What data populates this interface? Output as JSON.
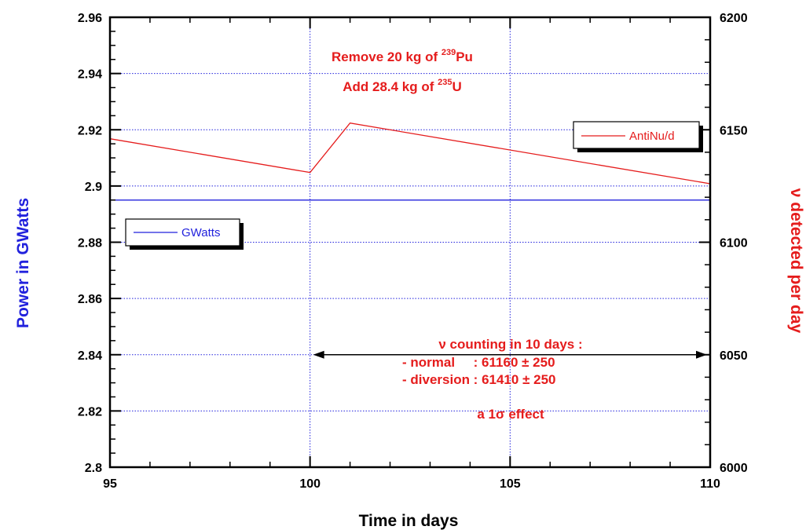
{
  "chart_data": {
    "type": "line",
    "xlabel": "Time in days",
    "ylabel_left": "Power in GWatts",
    "ylabel_right": "ν detected per day",
    "xlim": [
      95,
      110
    ],
    "ylim_left": [
      2.8,
      2.96
    ],
    "ylim_right": [
      6000,
      6200
    ],
    "x_ticks": [
      "95",
      "100",
      "105",
      "110"
    ],
    "y_ticks_left": [
      "2.8",
      "2.82",
      "2.84",
      "2.86",
      "2.88",
      "2.9",
      "2.92",
      "2.94",
      "2.96"
    ],
    "y_ticks_right": [
      "6000",
      "6050",
      "6100",
      "6150",
      "6200"
    ],
    "grid": true,
    "series": [
      {
        "name": "GWatts",
        "axis": "left",
        "color": "#2222dd",
        "points": [
          [
            95,
            2.895
          ],
          [
            110,
            2.895
          ]
        ]
      },
      {
        "name": "AntiNu/d",
        "axis": "right",
        "color": "#e51c1c",
        "points": [
          [
            95,
            6146
          ],
          [
            100,
            6131
          ],
          [
            101,
            6153
          ],
          [
            110,
            6126
          ]
        ]
      }
    ],
    "legend": [
      {
        "name": "GWatts",
        "color": "#2222dd",
        "placement": "left-middle"
      },
      {
        "name": "AntiNu/d",
        "color": "#e51c1c",
        "placement": "top-right"
      }
    ],
    "annotations": {
      "remove_prefix": "Remove 20 kg of ",
      "remove_sup": "239",
      "remove_suffix": "Pu",
      "add_prefix": "Add 28.4 kg of ",
      "add_sup": "235",
      "add_suffix": "U",
      "counting_title": "ν counting in 10 days :",
      "normal_line": "- normal     : 61160 ± 250",
      "diversion_line": "- diversion : 61410 ± 250",
      "effect_line": "a 1σ effect",
      "arrow_range": [
        100,
        110
      ],
      "arrow_level": 2.84
    }
  }
}
